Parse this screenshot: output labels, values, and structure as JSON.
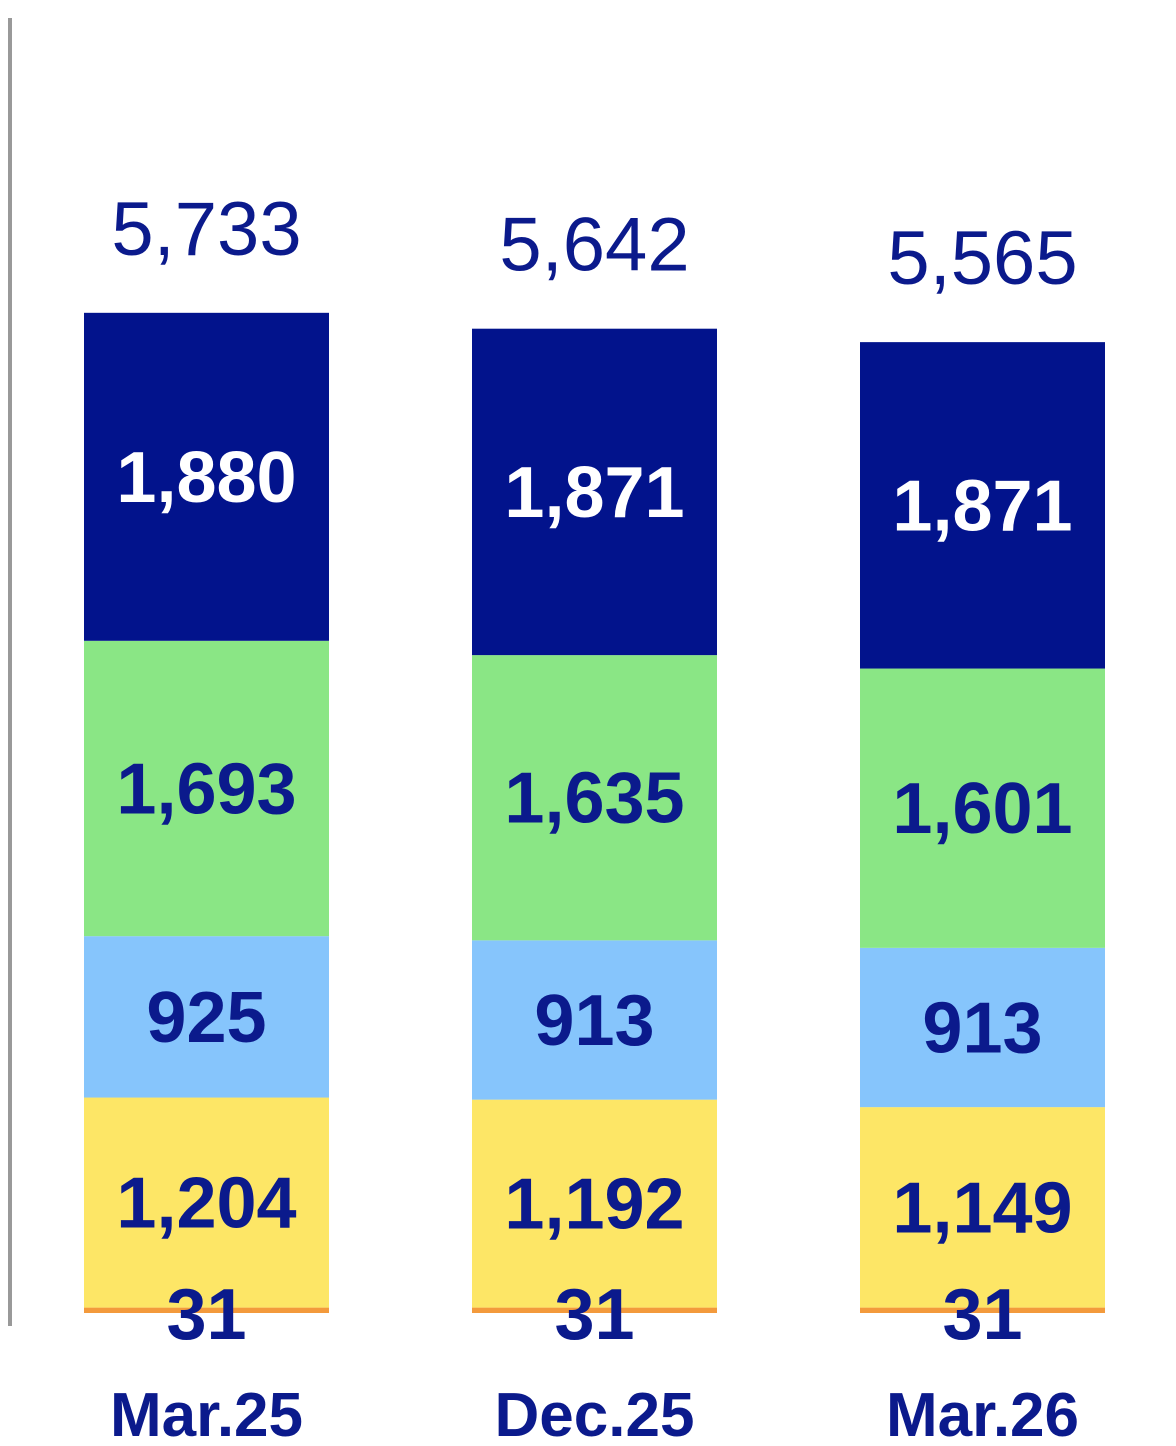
{
  "chart_data": {
    "type": "bar",
    "stacked": true,
    "categories": [
      "Mar.25",
      "Dec.25",
      "Mar.26"
    ],
    "totals": [
      "5,733",
      "5,642",
      "5,565"
    ],
    "series": [
      {
        "values": [
          31,
          31,
          31
        ],
        "labels": [
          "31",
          "31",
          "31"
        ],
        "color": "#f39a3c",
        "label_color": "#0b1a8c"
      },
      {
        "values": [
          1204,
          1192,
          1149
        ],
        "labels": [
          "1,204",
          "1,192",
          "1,149"
        ],
        "color": "#fde666",
        "label_color": "#0b1a8c"
      },
      {
        "values": [
          925,
          913,
          913
        ],
        "labels": [
          "925",
          "913",
          "913"
        ],
        "color": "#86c5fc",
        "label_color": "#0b1a8c"
      },
      {
        "values": [
          1693,
          1635,
          1601
        ],
        "labels": [
          "1,693",
          "1,635",
          "1,601"
        ],
        "color": "#8ae685",
        "label_color": "#0b1a8c"
      },
      {
        "values": [
          1880,
          1871,
          1871
        ],
        "labels": [
          "1,880",
          "1,871",
          "1,871"
        ],
        "color": "#02138c",
        "label_color": "#ffffff"
      }
    ],
    "axis_color": "#999999",
    "grid": false
  }
}
